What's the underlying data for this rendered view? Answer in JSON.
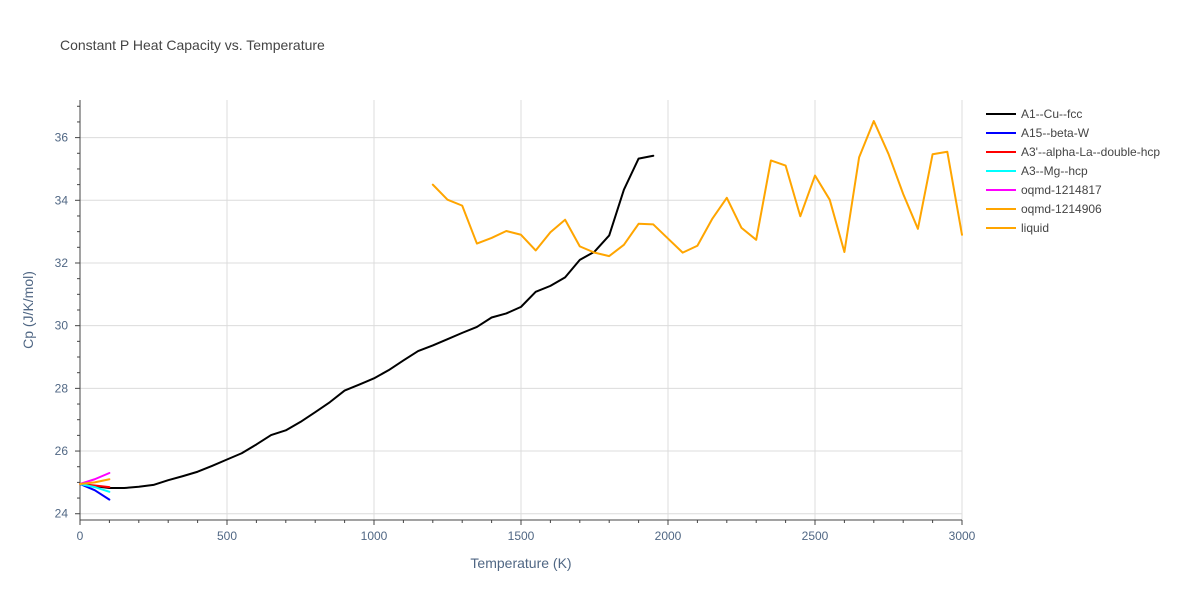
{
  "chart_data": {
    "type": "line",
    "title": "Constant P Heat Capacity vs. Temperature",
    "xlabel": "Temperature (K)",
    "ylabel": "Cp (J/K/mol)",
    "xlim": [
      0,
      3000
    ],
    "ylim": [
      23.8,
      37.2
    ],
    "xticks": [
      0,
      500,
      1000,
      1500,
      2000,
      2500,
      3000
    ],
    "xtick_labels": [
      "0",
      "500",
      "1000",
      "1500",
      "2000",
      "2500",
      "3000"
    ],
    "yticks": [
      24,
      26,
      28,
      30,
      32,
      34,
      36
    ],
    "ytick_labels": [
      "24",
      "26",
      "28",
      "30",
      "32",
      "34",
      "36"
    ],
    "grid": true,
    "legend_position": "right",
    "series": [
      {
        "name": "A1--Cu--fcc",
        "color": "#000000",
        "x": [
          0,
          50,
          100,
          150,
          200,
          250,
          300,
          350,
          400,
          450,
          500,
          550,
          600,
          650,
          700,
          750,
          800,
          850,
          900,
          950,
          1000,
          1050,
          1100,
          1150,
          1200,
          1250,
          1300,
          1350,
          1400,
          1450,
          1500,
          1550,
          1600,
          1650,
          1700,
          1750,
          1800,
          1850,
          1900,
          1950
        ],
        "y": [
          24.95,
          24.88,
          24.82,
          24.82,
          24.86,
          24.92,
          25.07,
          25.2,
          25.34,
          25.53,
          25.73,
          25.93,
          26.21,
          26.51,
          26.66,
          26.93,
          27.24,
          27.56,
          27.93,
          28.12,
          28.32,
          28.58,
          28.89,
          29.19,
          29.37,
          29.57,
          29.77,
          29.96,
          30.26,
          30.39,
          30.6,
          31.08,
          31.27,
          31.54,
          32.1,
          32.36,
          32.88,
          34.34,
          35.33,
          35.42
        ]
      },
      {
        "name": "A15--beta-W",
        "color": "#0000ff",
        "x": [
          0,
          50,
          100
        ],
        "y": [
          24.95,
          24.75,
          24.45
        ]
      },
      {
        "name": "A3'--alpha-La--double-hcp",
        "color": "#ff0000",
        "x": [
          0,
          50,
          100
        ],
        "y": [
          24.95,
          24.9,
          24.85
        ]
      },
      {
        "name": "A3--Mg--hcp",
        "color": "#00ffff",
        "x": [
          0,
          50,
          100
        ],
        "y": [
          24.95,
          24.85,
          24.7
        ]
      },
      {
        "name": "oqmd-1214817",
        "color": "#ff00ff",
        "x": [
          0,
          50,
          100
        ],
        "y": [
          24.95,
          25.1,
          25.3
        ]
      },
      {
        "name": "oqmd-1214906",
        "color": "#ffa500",
        "x": [
          0,
          50,
          100
        ],
        "y": [
          24.95,
          25.0,
          25.1
        ]
      },
      {
        "name": "liquid",
        "color": "#ffa500",
        "x": [
          1200,
          1250,
          1300,
          1350,
          1400,
          1450,
          1500,
          1550,
          1600,
          1650,
          1700,
          1750,
          1800,
          1850,
          1900,
          1950,
          2000,
          2050,
          2100,
          2150,
          2200,
          2250,
          2300,
          2350,
          2400,
          2450,
          2500,
          2550,
          2600,
          2650,
          2700,
          2750,
          2800,
          2850,
          2900,
          2950,
          3000
        ],
        "y": [
          34.5,
          34.02,
          33.83,
          32.62,
          32.8,
          33.02,
          32.9,
          32.4,
          32.98,
          33.38,
          32.53,
          32.33,
          32.22,
          32.58,
          33.25,
          33.23,
          32.78,
          32.33,
          32.55,
          33.4,
          34.08,
          33.12,
          32.74,
          35.27,
          35.11,
          33.49,
          34.79,
          34.02,
          32.35,
          35.37,
          36.53,
          35.48,
          34.2,
          33.09,
          35.47,
          35.55,
          32.9
        ]
      }
    ]
  }
}
